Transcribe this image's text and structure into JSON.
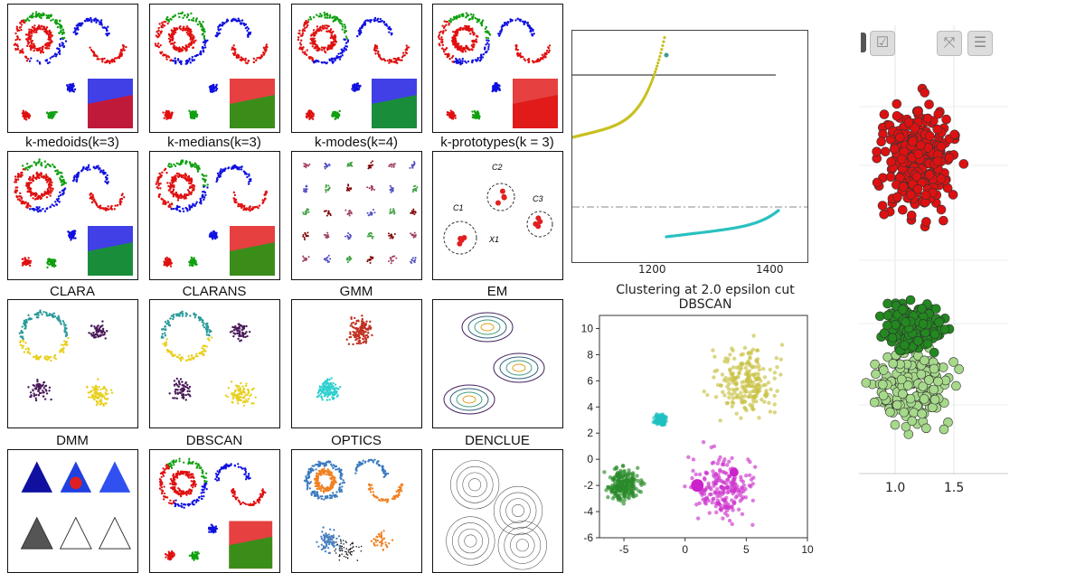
{
  "grid": {
    "titles": [
      "",
      "",
      "",
      "",
      "k-medoids(k=3)",
      "k-medians(k=3)",
      "k-modes(k=4)",
      "k-prototypes(k = 3)",
      "CLARA",
      "CLARANS",
      "GMM",
      "EM",
      "DMM",
      "DBSCAN",
      "OPTICS",
      "DENCLUE"
    ],
    "kproto_labels": [
      "C1",
      "C2",
      "C3",
      "X1"
    ]
  },
  "reachability": {
    "x_ticks": [
      "1200",
      "1400"
    ],
    "colors": {
      "rising": "#c8c020",
      "flat": "#2bc0c0",
      "line": "#888888"
    }
  },
  "chart_data": {
    "type": "scatter",
    "title": "Clustering at 2.0 epsilon cut\nDBSCAN",
    "title_line1": "Clustering at 2.0 epsilon cut",
    "title_line2": "DBSCAN",
    "xlim": [
      -7,
      10
    ],
    "ylim": [
      -6,
      11
    ],
    "x_ticks": [
      "-5",
      "0",
      "5",
      "10"
    ],
    "y_ticks": [
      "10",
      "8",
      "6",
      "4",
      "2",
      "0",
      "-2",
      "-4",
      "-6"
    ],
    "grid": false,
    "series": [
      {
        "color": "#c8c040",
        "center": [
          5,
          6
        ],
        "spread": 1.8
      },
      {
        "color": "#20c0c0",
        "center": [
          -2,
          3
        ],
        "spread": 0.3
      },
      {
        "color": "#2a8a2a",
        "center": [
          -5,
          -2
        ],
        "spread": 0.9
      },
      {
        "color": "#cc33cc",
        "center": [
          3,
          -2
        ],
        "spread": 1.7
      }
    ]
  },
  "right_plot": {
    "x_ticks": [
      "1.0",
      "1.5"
    ],
    "toolbar": [
      "select-icon",
      "checkbox-icon",
      "expand-icon",
      "menu-icon"
    ],
    "colors": {
      "red": "#dd1111",
      "green": "#22881f",
      "lightgreen": "#a6d98a"
    }
  }
}
